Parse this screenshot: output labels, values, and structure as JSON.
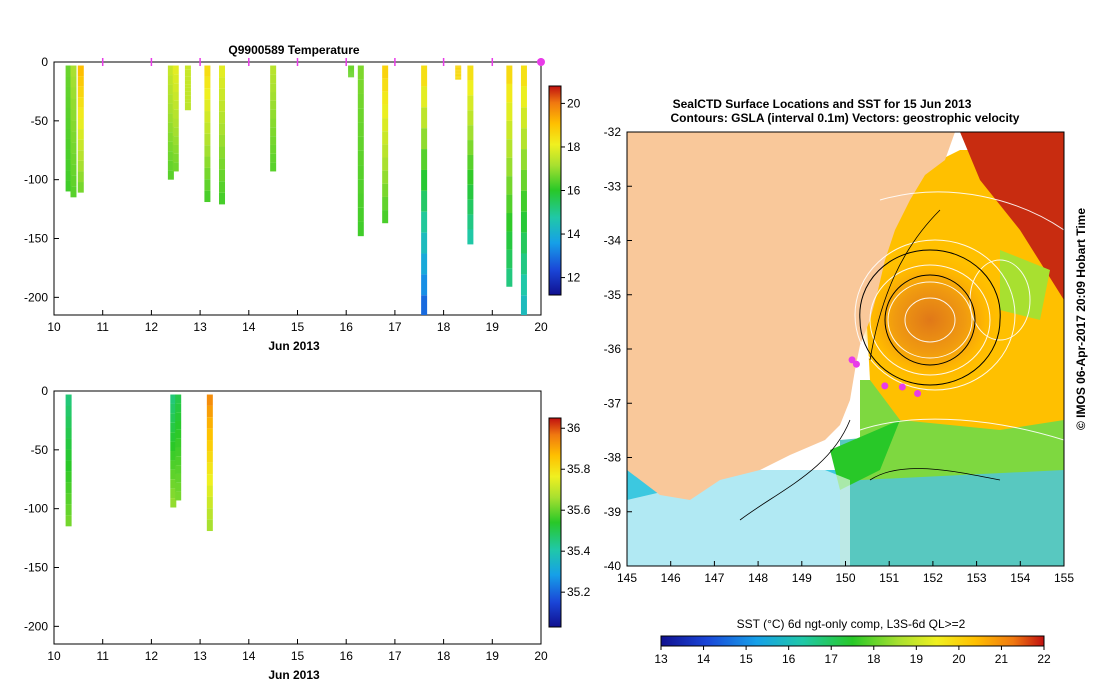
{
  "colors": {
    "land": "#f9c89a",
    "marker": "#e83ce8",
    "background": "#ffffff"
  },
  "chart_data": [
    {
      "type": "heatmap",
      "title": "Q9900589  Temperature",
      "xlabel": "Jun 2013",
      "ylabel": "",
      "x_ticks": [
        "10",
        "11",
        "12",
        "13",
        "14",
        "15",
        "16",
        "17",
        "18",
        "19",
        "20"
      ],
      "y_ticks": [
        "0",
        "-50",
        "-100",
        "-150",
        "-200"
      ],
      "xlim": [
        10,
        20
      ],
      "ylim": [
        -215,
        0
      ],
      "colorbar": {
        "ticks": [
          "20",
          "18",
          "16",
          "14",
          "12"
        ],
        "range": [
          11.2,
          20.8
        ]
      },
      "profiles": [
        {
          "t": 10.3,
          "depth": 107,
          "surf": 16.6,
          "bottom": 16.2
        },
        {
          "t": 10.4,
          "depth": 112,
          "surf": 17.2,
          "bottom": 16.4
        },
        {
          "t": 10.55,
          "depth": 108,
          "surf": 19.2,
          "bottom": 16.6
        },
        {
          "t": 12.4,
          "depth": 97,
          "surf": 17.6,
          "bottom": 16.4
        },
        {
          "t": 12.5,
          "depth": 90,
          "surf": 18.0,
          "bottom": 16.6
        },
        {
          "t": 12.75,
          "depth": 38,
          "surf": 17.6,
          "bottom": 17.4
        },
        {
          "t": 13.15,
          "depth": 116,
          "surf": 18.6,
          "bottom": 16.2
        },
        {
          "t": 13.45,
          "depth": 118,
          "surf": 18.0,
          "bottom": 16.2
        },
        {
          "t": 14.5,
          "depth": 90,
          "surf": 17.4,
          "bottom": 16.4
        },
        {
          "t": 16.1,
          "depth": 10,
          "surf": 16.6,
          "bottom": 16.6
        },
        {
          "t": 16.3,
          "depth": 145,
          "surf": 16.8,
          "bottom": 16.2
        },
        {
          "t": 16.8,
          "depth": 134,
          "surf": 18.8,
          "bottom": 16.2
        },
        {
          "t": 17.6,
          "depth": 213,
          "surf": 18.7,
          "bottom": 12.6
        },
        {
          "t": 18.3,
          "depth": 12,
          "surf": 18.7,
          "bottom": 18.5
        },
        {
          "t": 18.55,
          "depth": 152,
          "surf": 18.6,
          "bottom": 14.6
        },
        {
          "t": 19.35,
          "depth": 188,
          "surf": 18.7,
          "bottom": 15.0
        },
        {
          "t": 19.65,
          "depth": 213,
          "surf": 18.6,
          "bottom": 14.2
        }
      ]
    },
    {
      "type": "heatmap",
      "title": "",
      "xlabel": "Jun 2013",
      "ylabel": "",
      "x_ticks": [
        "10",
        "11",
        "12",
        "13",
        "14",
        "15",
        "16",
        "17",
        "18",
        "19",
        "20"
      ],
      "y_ticks": [
        "0",
        "-50",
        "-100",
        "-150",
        "-200"
      ],
      "xlim": [
        10,
        20
      ],
      "ylim": [
        -215,
        0
      ],
      "colorbar": {
        "ticks": [
          "36",
          "35.8",
          "35.6",
          "35.4",
          "35.2"
        ],
        "range": [
          35.03,
          36.05
        ]
      },
      "profiles": [
        {
          "t": 10.3,
          "depth": 112,
          "surf": 35.45,
          "bottom": 35.62
        },
        {
          "t": 12.45,
          "depth": 96,
          "surf": 35.45,
          "bottom": 35.65
        },
        {
          "t": 12.55,
          "depth": 90,
          "surf": 35.5,
          "bottom": 35.62
        },
        {
          "t": 13.2,
          "depth": 116,
          "surf": 35.95,
          "bottom": 35.65
        }
      ]
    },
    {
      "type": "heatmap",
      "title": "SealCTD Surface Locations and SST for 15 Jun 2013",
      "subtitle": "Contours: GSLA (interval 0.1m) Vectors: geostrophic velocity",
      "xlabel": "",
      "ylabel": "",
      "x_ticks": [
        "145",
        "146",
        "147",
        "148",
        "149",
        "150",
        "151",
        "152",
        "153",
        "154",
        "155"
      ],
      "y_ticks": [
        "-32",
        "-33",
        "-34",
        "-35",
        "-36",
        "-37",
        "-38",
        "-39",
        "-40"
      ],
      "xlim": [
        145,
        155
      ],
      "ylim": [
        -40,
        -32
      ],
      "colorbar": {
        "label": "SST (°C) 6d ngt-only comp, L3S-6d QL>=2",
        "ticks": [
          "13",
          "14",
          "15",
          "16",
          "17",
          "18",
          "19",
          "20",
          "21",
          "22"
        ],
        "range": [
          13,
          22
        ]
      },
      "seal_locations": [
        {
          "lon": 150.15,
          "lat": -36.2
        },
        {
          "lon": 150.25,
          "lat": -36.28
        },
        {
          "lon": 150.9,
          "lat": -36.68
        },
        {
          "lon": 151.3,
          "lat": -36.7
        },
        {
          "lon": 151.65,
          "lat": -36.82
        }
      ]
    }
  ],
  "side_text": "© IMOS 06-Apr-2017 20:09 Hobart Time"
}
